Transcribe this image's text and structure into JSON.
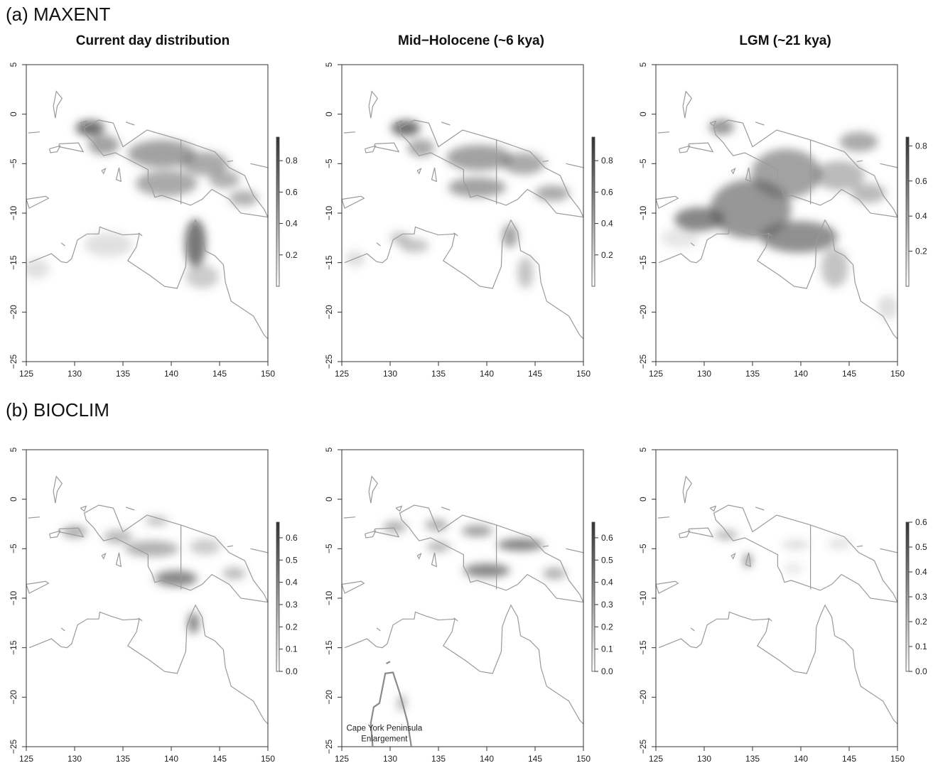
{
  "rows": [
    {
      "label": "(a) MAXENT",
      "panels": [
        {
          "colorbar_ticks": [
            "0.8",
            "0.6",
            "0.4",
            "0.2"
          ],
          "colorbar_values": [
            0.8,
            0.6,
            0.4,
            0.2
          ],
          "colorbar_max": 0.95
        },
        {
          "colorbar_ticks": [
            "0.8",
            "0.6",
            "0.4",
            "0.2"
          ],
          "colorbar_values": [
            0.8,
            0.6,
            0.4,
            0.2
          ],
          "colorbar_max": 0.95
        },
        {
          "colorbar_ticks": [
            "0.8",
            "0.6",
            "0.4",
            "0.2"
          ],
          "colorbar_values": [
            0.8,
            0.6,
            0.4,
            0.2
          ],
          "colorbar_max": 0.85
        }
      ]
    },
    {
      "label": "(b) BIOCLIM",
      "panels": [
        {
          "colorbar_ticks": [
            "0.6",
            "0.5",
            "0.4",
            "0.3",
            "0.2",
            "0.1",
            "0.0"
          ],
          "colorbar_values": [
            0.6,
            0.5,
            0.4,
            0.3,
            0.2,
            0.1,
            0.0
          ],
          "colorbar_max": 0.67
        },
        {
          "colorbar_ticks": [
            "0.6",
            "0.5",
            "0.4",
            "0.3",
            "0.2",
            "0.1",
            "0.0"
          ],
          "colorbar_values": [
            0.6,
            0.5,
            0.4,
            0.3,
            0.2,
            0.1,
            0.0
          ],
          "colorbar_max": 0.67,
          "annotation": [
            "Cape York Peninsula",
            "Enlargement"
          ]
        },
        {
          "colorbar_ticks": [
            "0.6",
            "0.5",
            "0.4",
            "0.3",
            "0.2",
            "0.1",
            "0.0"
          ],
          "colorbar_values": [
            0.6,
            0.5,
            0.4,
            0.3,
            0.2,
            0.1,
            0.0
          ],
          "colorbar_max": 0.6
        }
      ]
    }
  ],
  "column_titles": [
    "Current day distribution",
    "Mid−Holocene (~6 kya)",
    "LGM (~21 kya)"
  ],
  "x_ticks": [
    "125",
    "130",
    "135",
    "140",
    "145",
    "150"
  ],
  "y_ticks": [
    "5",
    "0",
    "−5",
    "−10",
    "−15",
    "−20",
    "−25"
  ],
  "x_tick_values": [
    125,
    130,
    135,
    140,
    145,
    150
  ],
  "y_tick_values": [
    5,
    0,
    -5,
    -10,
    -15,
    -20,
    -25
  ],
  "lon_range": [
    125,
    150
  ],
  "lat_range": [
    -25,
    5
  ],
  "colors": {
    "outline": "#9a9a9a",
    "axis": "#333333",
    "suitability": "#555555"
  }
}
